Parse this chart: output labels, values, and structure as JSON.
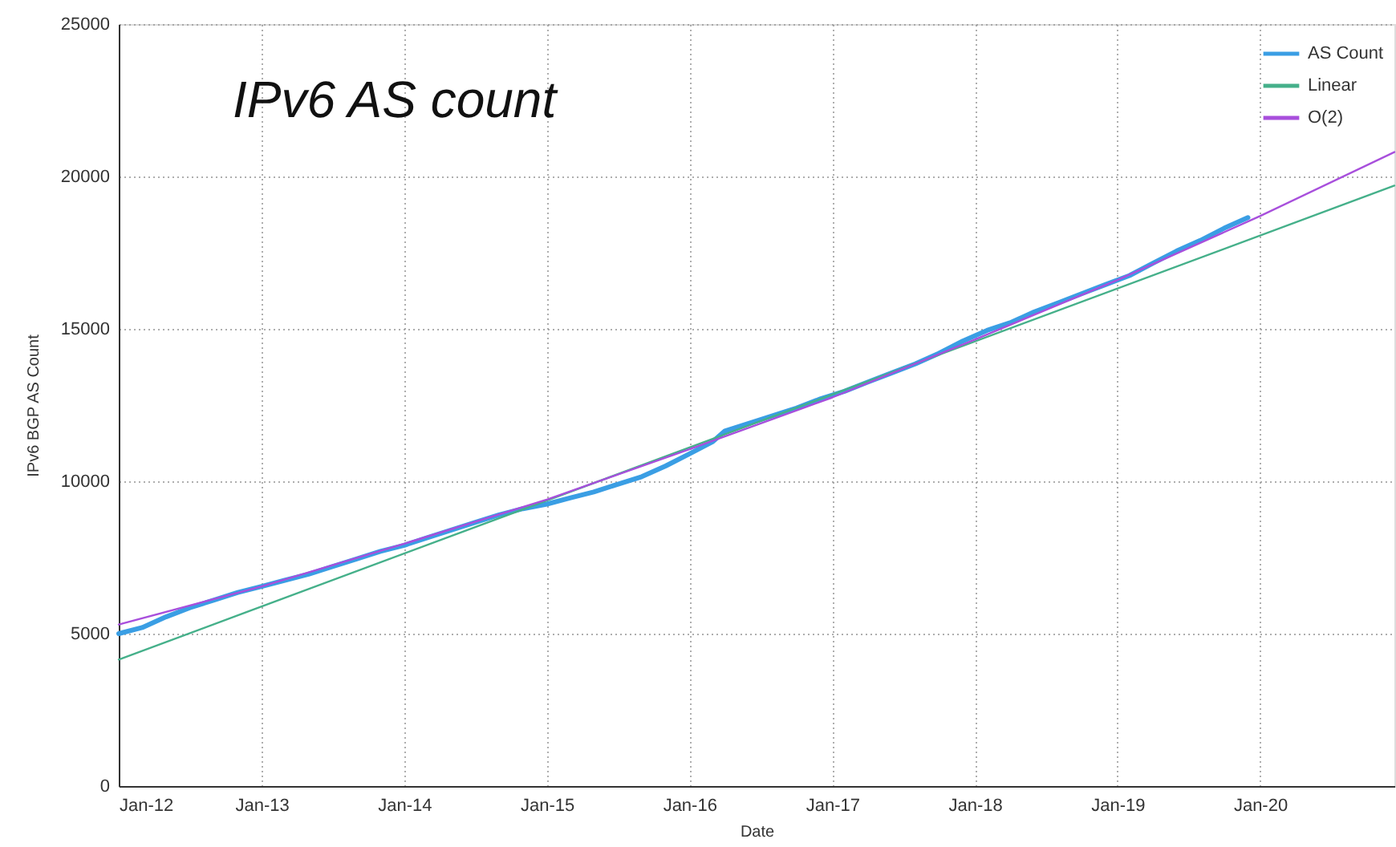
{
  "chart_data": {
    "type": "line",
    "title": "IPv6 AS count",
    "xlabel": "Date",
    "ylabel": "IPv6 BGP AS Count",
    "xlim": [
      "2012-01-01",
      "2020-12-10"
    ],
    "ylim": [
      0,
      25000
    ],
    "xticks": [
      {
        "value": "2012-01-01",
        "label": "Jan-12"
      },
      {
        "value": "2013-01-01",
        "label": "Jan-13"
      },
      {
        "value": "2014-01-01",
        "label": "Jan-14"
      },
      {
        "value": "2015-01-01",
        "label": "Jan-15"
      },
      {
        "value": "2016-01-01",
        "label": "Jan-16"
      },
      {
        "value": "2017-01-01",
        "label": "Jan-17"
      },
      {
        "value": "2018-01-01",
        "label": "Jan-18"
      },
      {
        "value": "2019-01-01",
        "label": "Jan-19"
      },
      {
        "value": "2020-01-01",
        "label": "Jan-20"
      }
    ],
    "yticks": [
      0,
      5000,
      10000,
      15000,
      20000,
      25000
    ],
    "grid": true,
    "legend": "top right",
    "line_style": "solid",
    "series": [
      {
        "name": "AS Count",
        "color": "#3a9ee4",
        "x": [
          "2012-01",
          "2012-03",
          "2012-05",
          "2012-07",
          "2012-09",
          "2012-11",
          "2013-01",
          "2013-03",
          "2013-05",
          "2013-07",
          "2013-09",
          "2013-11",
          "2014-01",
          "2014-03",
          "2014-05",
          "2014-07",
          "2014-09",
          "2014-11",
          "2015-01",
          "2015-03",
          "2015-05",
          "2015-07",
          "2015-09",
          "2015-11",
          "2016-01",
          "2016-03",
          "2016-04",
          "2016-06",
          "2016-08",
          "2016-10",
          "2016-12",
          "2017-02",
          "2017-04",
          "2017-06",
          "2017-08",
          "2017-10",
          "2017-12",
          "2018-02",
          "2018-04",
          "2018-06",
          "2018-08",
          "2018-10",
          "2018-12",
          "2019-02",
          "2019-04",
          "2019-06",
          "2019-08",
          "2019-10",
          "2019-12"
        ],
        "values": [
          5000,
          5200,
          5550,
          5850,
          6100,
          6350,
          6550,
          6750,
          6950,
          7200,
          7450,
          7700,
          7900,
          8150,
          8400,
          8650,
          8900,
          9100,
          9250,
          9450,
          9650,
          9900,
          10150,
          10500,
          10900,
          11300,
          11650,
          11900,
          12150,
          12400,
          12700,
          12950,
          13250,
          13550,
          13850,
          14200,
          14600,
          14950,
          15200,
          15550,
          15850,
          16150,
          16450,
          16750,
          17150,
          17550,
          17900,
          18300,
          18650
        ]
      },
      {
        "name": "Linear",
        "color": "#45b08a",
        "x": [
          "2012-01-01",
          "2020-12-10"
        ],
        "values": [
          4150,
          19700
        ]
      },
      {
        "name": "O(2)",
        "color": "#a84fdc",
        "x": [
          "2012-01-01",
          "2013-01-01",
          "2014-01-01",
          "2015-01-01",
          "2016-01-01",
          "2017-01-01",
          "2018-01-01",
          "2019-01-01",
          "2020-01-01",
          "2020-12-10"
        ],
        "values": [
          5300,
          6550,
          7950,
          9400,
          11050,
          12750,
          14650,
          16600,
          18700,
          20800
        ]
      }
    ]
  }
}
